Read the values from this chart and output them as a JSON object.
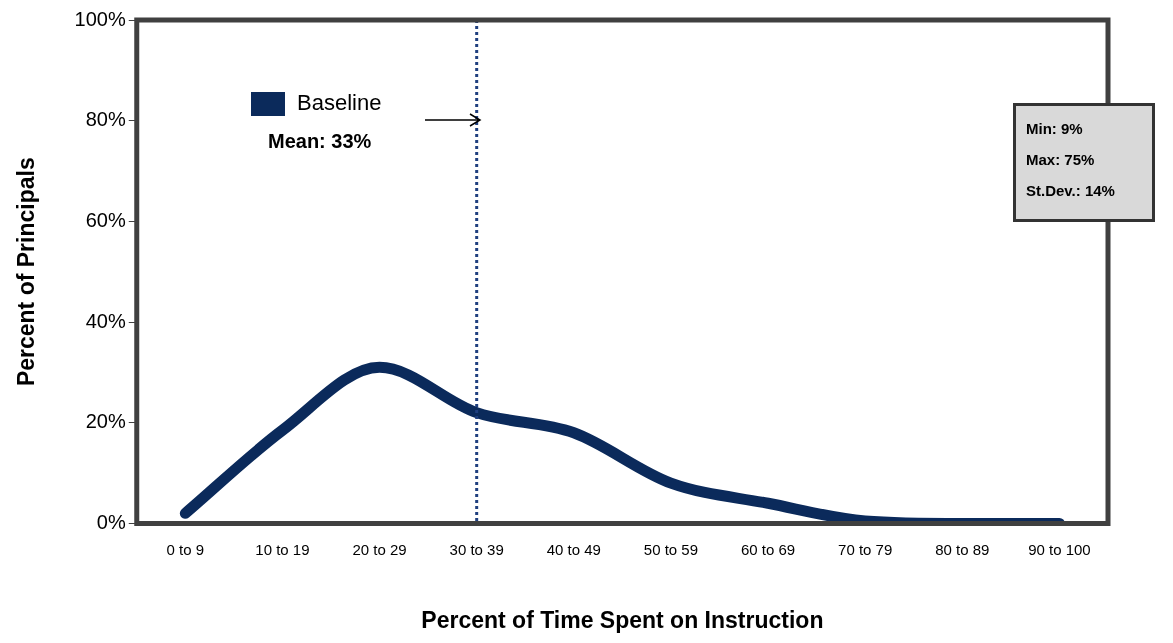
{
  "chart_data": {
    "type": "line",
    "xlabel": "Percent of Time Spent on Instruction",
    "ylabel": "Percent of Principals",
    "categories": [
      "0 to 9",
      "10 to 19",
      "20 to 29",
      "30 to 39",
      "40 to 49",
      "50 to 59",
      "60 to 69",
      "70 to 79",
      "80 to 89",
      "90 to 100"
    ],
    "series": [
      {
        "name": "Baseline",
        "color": "#0b2a5b",
        "values": [
          2,
          18.5,
          31,
          22,
          18,
          8,
          4,
          0.5,
          0,
          0
        ]
      }
    ],
    "ylim": [
      0,
      100
    ],
    "yticks": [
      {
        "value": 0,
        "label": "0%"
      },
      {
        "value": 20,
        "label": "20%"
      },
      {
        "value": 40,
        "label": "40%"
      },
      {
        "value": 60,
        "label": "60%"
      },
      {
        "value": 80,
        "label": "80%"
      },
      {
        "value": 100,
        "label": "100%"
      }
    ],
    "ref_lines": [
      {
        "axis": "x",
        "value": "30 to 39",
        "color": "#1f3f7f",
        "line_style": "dotted"
      }
    ],
    "annotations": [
      "Mean: 33%",
      "Min: 9%",
      "Max: 75%",
      "St.Dev.: 14%"
    ],
    "legend": "top left",
    "grid": false,
    "marker": "none",
    "line_style": "solid"
  }
}
